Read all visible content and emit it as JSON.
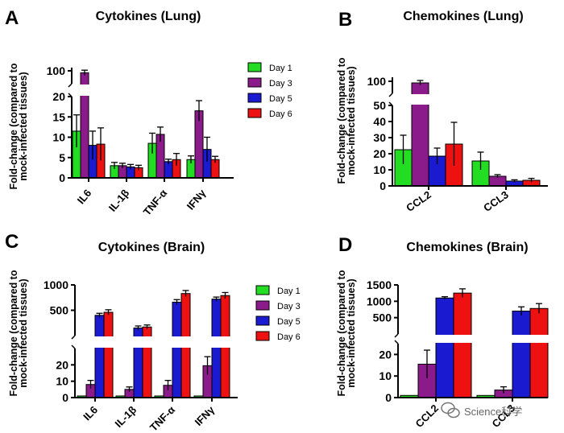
{
  "chart_data": [
    {
      "panel": "A",
      "title": "Cytokines (Lung)",
      "type": "bar",
      "ylabel": [
        "Fold-change (compared to",
        "mock-infected tissues)"
      ],
      "categories": [
        "IL6",
        "IL-1β",
        "TNF-α",
        "IFNγ"
      ],
      "y_segments": [
        {
          "range": [
            0,
            20
          ],
          "ticks": [
            0,
            5,
            10,
            15,
            20
          ]
        },
        {
          "range": [
            80,
            105
          ],
          "ticks": [
            100
          ]
        }
      ],
      "series": [
        {
          "name": "Day 1",
          "color": "#22dd22",
          "values": [
            11.5,
            3.0,
            8.5,
            4.5
          ],
          "errors": [
            4.0,
            0.8,
            2.5,
            0.9
          ]
        },
        {
          "name": "Day 3",
          "color": "#8b1a8b",
          "values": [
            97,
            3.0,
            10.7,
            16.5
          ],
          "errors": [
            4.0,
            0.6,
            1.8,
            2.5
          ]
        },
        {
          "name": "Day 5",
          "color": "#1a1ad0",
          "values": [
            8.0,
            2.7,
            4.0,
            7.0
          ],
          "errors": [
            3.5,
            0.6,
            0.6,
            3.0
          ]
        },
        {
          "name": "Day 6",
          "color": "#ee1111",
          "values": [
            8.3,
            2.5,
            4.5,
            4.5
          ],
          "errors": [
            4.0,
            0.6,
            1.5,
            0.8
          ]
        }
      ],
      "legend": "right"
    },
    {
      "panel": "B",
      "title": "Chemokines (Lung)",
      "type": "bar",
      "ylabel": [
        "Fold-change (compared to",
        "mock-infected tissues)"
      ],
      "categories": [
        "CCL2",
        "CCL3"
      ],
      "y_segments": [
        {
          "range": [
            0,
            50
          ],
          "ticks": [
            0,
            10,
            20,
            30,
            40,
            50
          ]
        },
        {
          "range": [
            85,
            105
          ],
          "ticks": [
            100
          ]
        }
      ],
      "series": [
        {
          "name": "Day 1",
          "color": "#22dd22",
          "values": [
            22.5,
            15.5
          ],
          "errors": [
            9.0,
            5.5
          ]
        },
        {
          "name": "Day 3",
          "color": "#8b1a8b",
          "values": [
            98,
            6.0
          ],
          "errors": [
            3.0,
            1.0
          ]
        },
        {
          "name": "Day 5",
          "color": "#1a1ad0",
          "values": [
            18.5,
            3.0
          ],
          "errors": [
            5.0,
            0.8
          ]
        },
        {
          "name": "Day 6",
          "color": "#ee1111",
          "values": [
            26,
            3.5
          ],
          "errors": [
            13.5,
            1.2
          ]
        }
      ]
    },
    {
      "panel": "C",
      "title": "Cytokines (Brain)",
      "type": "bar",
      "ylabel": [
        "Fold-change (compared to",
        "mock-infected tissues)"
      ],
      "categories": [
        "IL6",
        "IL-1β",
        "TNF-α",
        "IFNγ"
      ],
      "y_segments": [
        {
          "range": [
            0,
            30
          ],
          "ticks": [
            0,
            10,
            20
          ]
        },
        {
          "range": [
            0,
            1000
          ],
          "ticks": [
            500,
            1000
          ]
        }
      ],
      "series": [
        {
          "name": "Day 1",
          "color": "#22dd22",
          "values": [
            1,
            1,
            1,
            1
          ],
          "errors": [
            0,
            0,
            0,
            0
          ]
        },
        {
          "name": "Day 3",
          "color": "#8b1a8b",
          "values": [
            8,
            5,
            7.5,
            19.5
          ],
          "errors": [
            2.5,
            1.5,
            3.0,
            5.5
          ]
        },
        {
          "name": "Day 5",
          "color": "#1a1ad0",
          "values": [
            400,
            150,
            660,
            720
          ],
          "errors": [
            40,
            40,
            50,
            40
          ]
        },
        {
          "name": "Day 6",
          "color": "#ee1111",
          "values": [
            460,
            170,
            830,
            790
          ],
          "errors": [
            50,
            40,
            60,
            60
          ]
        }
      ],
      "legend": "right"
    },
    {
      "panel": "D",
      "title": "Chemokines (Brain)",
      "type": "bar",
      "ylabel": [
        "Fold-change (compared to",
        "mock-infected tissues)"
      ],
      "categories": [
        "CCL2",
        "CCL3"
      ],
      "y_segments": [
        {
          "range": [
            0,
            25
          ],
          "ticks": [
            0,
            10,
            20
          ]
        },
        {
          "range": [
            0,
            1500
          ],
          "ticks": [
            500,
            1000,
            1500
          ]
        }
      ],
      "series": [
        {
          "name": "Day 1",
          "color": "#22dd22",
          "values": [
            1,
            1
          ],
          "errors": [
            0,
            0
          ]
        },
        {
          "name": "Day 3",
          "color": "#8b1a8b",
          "values": [
            15.5,
            3.5
          ],
          "errors": [
            6.5,
            1.5
          ]
        },
        {
          "name": "Day 5",
          "color": "#1a1ad0",
          "values": [
            1100,
            700
          ],
          "errors": [
            40,
            130
          ]
        },
        {
          "name": "Day 6",
          "color": "#ee1111",
          "values": [
            1250,
            780
          ],
          "errors": [
            130,
            150
          ]
        }
      ]
    }
  ],
  "watermark": {
    "text": "Science科学",
    "icon": "wechat-icon"
  }
}
